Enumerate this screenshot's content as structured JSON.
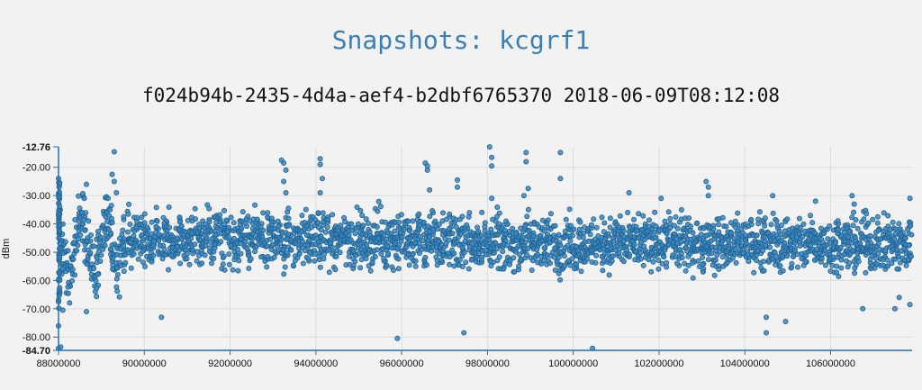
{
  "page": {
    "title": "Snapshots: kcgrf1",
    "subtitle": "f024b94b-2435-4d4a-aef4-b2dbf6765370 2018-06-09T08:12:08"
  },
  "chart_data": {
    "type": "scatter",
    "ylabel": "dBm",
    "xlabel": "",
    "xlim": [
      88000000,
      107900000
    ],
    "ylim": [
      -84.7,
      -12.76
    ],
    "x_ticks": [
      88000000,
      90000000,
      92000000,
      94000000,
      96000000,
      98000000,
      100000000,
      102000000,
      104000000,
      106000000
    ],
    "y_ticks": [
      -20,
      -30,
      -40,
      -50,
      -60,
      -70,
      -80
    ],
    "y_tick_labels": [
      "-20.00",
      "-30.00",
      "-40.00",
      "-50.00",
      "-60.00",
      "-70.00",
      "-80.00"
    ],
    "y_min_label": "-84.70",
    "y_max_label": "-12.76",
    "grid": true,
    "colors": {
      "point_fill": "#3a87c0",
      "point_stroke": "#1f5f8f",
      "axis": "#2a6fa8",
      "grid": "#dcdcdc"
    },
    "baseline": {
      "x_start": 88000000,
      "x_step": 50000,
      "values": [
        -55,
        -50,
        -46,
        -52,
        -58,
        -60,
        -56,
        -51,
        -49,
        -42,
        -40,
        -38,
        -41,
        -45,
        -50,
        -53,
        -55,
        -57,
        -54,
        -49,
        -46,
        -44,
        -40,
        -38,
        -42,
        -47,
        -52,
        -55,
        -53,
        -49,
        -47,
        -45,
        -44,
        -46,
        -48,
        -47,
        -45,
        -43,
        -44,
        -46,
        -45,
        -44,
        -46,
        -48,
        -46,
        -44,
        -45,
        -47,
        -46,
        -45,
        -44,
        -45,
        -47,
        -48,
        -46,
        -45,
        -44,
        -43,
        -45,
        -46,
        -47,
        -46,
        -45,
        -44,
        -45,
        -46,
        -48,
        -47,
        -45,
        -44,
        -43,
        -45,
        -46,
        -45,
        -44,
        -45,
        -46,
        -45,
        -44,
        -44,
        -45,
        -47,
        -49,
        -48,
        -46,
        -45,
        -44,
        -45,
        -46,
        -47,
        -46,
        -44,
        -43,
        -44,
        -45,
        -46,
        -47,
        -48,
        -46,
        -45,
        -44,
        -43,
        -44,
        -46,
        -47,
        -48,
        -46,
        -45,
        -44,
        -45,
        -46,
        -47,
        -46,
        -45,
        -44,
        -44,
        -45,
        -46,
        -45,
        -44,
        -45,
        -46,
        -47,
        -46,
        -45,
        -44,
        -45,
        -46,
        -47,
        -48,
        -47,
        -45,
        -44,
        -43,
        -44,
        -45,
        -46,
        -47,
        -46,
        -45,
        -44,
        -45,
        -46,
        -47,
        -48,
        -47,
        -46,
        -45,
        -44,
        -44,
        -45,
        -46,
        -47,
        -46,
        -45,
        -44,
        -45,
        -46,
        -47,
        -46,
        -45,
        -44,
        -45,
        -46,
        -47,
        -47,
        -46,
        -45,
        -44,
        -45,
        -46,
        -47,
        -47,
        -46,
        -45,
        -45,
        -46,
        -47,
        -48,
        -47,
        -46,
        -45,
        -44,
        -45,
        -46,
        -47,
        -48,
        -47,
        -46,
        -45,
        -44,
        -45,
        -46,
        -47,
        -48,
        -47,
        -46,
        -45,
        -46,
        -47,
        -48,
        -48,
        -47,
        -46,
        -45,
        -46,
        -47,
        -48,
        -49,
        -48,
        -47,
        -46,
        -46,
        -47,
        -48,
        -48,
        -47,
        -46,
        -45,
        -46,
        -47,
        -48,
        -47,
        -46,
        -45,
        -46,
        -47,
        -48,
        -48,
        -47,
        -46,
        -46,
        -47,
        -48,
        -49,
        -48,
        -47,
        -46,
        -46,
        -47,
        -48,
        -48,
        -47,
        -46,
        -46,
        -47,
        -48,
        -48,
        -47,
        -46,
        -46,
        -47,
        -48,
        -48,
        -47,
        -46,
        -46,
        -47,
        -48,
        -47,
        -46,
        -45,
        -46,
        -47,
        -48,
        -48,
        -47,
        -46,
        -46,
        -47,
        -48,
        -48,
        -47,
        -46,
        -46,
        -47,
        -48,
        -47,
        -46,
        -45,
        -46,
        -47,
        -48,
        -48,
        -47,
        -46,
        -46,
        -47,
        -48,
        -48,
        -47,
        -46,
        -46,
        -47,
        -48,
        -48,
        -47,
        -46,
        -46,
        -47,
        -48,
        -48,
        -47,
        -46,
        -46,
        -47,
        -48,
        -48,
        -47,
        -46,
        -46,
        -47,
        -48,
        -48,
        -47,
        -46,
        -46,
        -47,
        -48,
        -48,
        -47,
        -46,
        -46,
        -47,
        -48,
        -48,
        -47,
        -46,
        -46,
        -47,
        -48,
        -48,
        -47,
        -46,
        -46,
        -47,
        -48,
        -48,
        -47,
        -46,
        -46,
        -47,
        -48,
        -48,
        -47,
        -46,
        -46,
        -47,
        -48,
        -48,
        -47,
        -46,
        -46,
        -47,
        -48,
        -48,
        -47,
        -46,
        -46,
        -47,
        -48,
        -48,
        -47,
        -46,
        -46,
        -47,
        -48,
        -48,
        -47,
        -46,
        -46,
        -47,
        -48,
        -48,
        -47,
        -46,
        -46,
        -47,
        -48,
        -48,
        -47,
        -46,
        -46,
        -47,
        -48,
        -48,
        -47,
        -46,
        -46,
        -47,
        -48,
        -48,
        -47,
        -46,
        -46,
        -47,
        -48,
        -48,
        -47,
        -46,
        -46,
        -47,
        -48,
        -48,
        -47,
        -46,
        -46,
        -47,
        -48,
        -48,
        -47,
        -46,
        -46,
        -47,
        -48,
        -48,
        -47
      ]
    },
    "peaks": [
      {
        "x": 88000000,
        "y": -24.0
      },
      {
        "x": 88020000,
        "y": -30.0
      },
      {
        "x": 88040000,
        "y": -35.0
      },
      {
        "x": 88550000,
        "y": -36.0
      },
      {
        "x": 88600000,
        "y": -31.0
      },
      {
        "x": 88650000,
        "y": -26.0
      },
      {
        "x": 88700000,
        "y": -39.0
      },
      {
        "x": 89250000,
        "y": -22.5
      },
      {
        "x": 89300000,
        "y": -14.5
      },
      {
        "x": 89300000,
        "y": -25.0
      },
      {
        "x": 89350000,
        "y": -29.0
      },
      {
        "x": 89200000,
        "y": -35.0
      },
      {
        "x": 93200000,
        "y": -17.5
      },
      {
        "x": 93250000,
        "y": -18.5
      },
      {
        "x": 93300000,
        "y": -21.0
      },
      {
        "x": 93250000,
        "y": -25.0
      },
      {
        "x": 93300000,
        "y": -29.0
      },
      {
        "x": 94100000,
        "y": -17.0
      },
      {
        "x": 94100000,
        "y": -19.0
      },
      {
        "x": 94150000,
        "y": -24.0
      },
      {
        "x": 94100000,
        "y": -29.0
      },
      {
        "x": 96550000,
        "y": -18.5
      },
      {
        "x": 96600000,
        "y": -19.5
      },
      {
        "x": 96600000,
        "y": -21.0
      },
      {
        "x": 96650000,
        "y": -28.0
      },
      {
        "x": 97300000,
        "y": -24.5
      },
      {
        "x": 97300000,
        "y": -27.0
      },
      {
        "x": 98050000,
        "y": -12.8
      },
      {
        "x": 98100000,
        "y": -16.5
      },
      {
        "x": 98100000,
        "y": -19.5
      },
      {
        "x": 98100000,
        "y": -31.0
      },
      {
        "x": 98900000,
        "y": -14.8
      },
      {
        "x": 98900000,
        "y": -18.0
      },
      {
        "x": 98950000,
        "y": -27.5
      },
      {
        "x": 98850000,
        "y": -30.0
      },
      {
        "x": 99700000,
        "y": -14.8
      },
      {
        "x": 99700000,
        "y": -24.0
      },
      {
        "x": 101300000,
        "y": -29.0
      },
      {
        "x": 102050000,
        "y": -31.0
      },
      {
        "x": 103100000,
        "y": -25.0
      },
      {
        "x": 103150000,
        "y": -27.0
      },
      {
        "x": 103150000,
        "y": -30.0
      },
      {
        "x": 104650000,
        "y": -30.0
      },
      {
        "x": 105650000,
        "y": -32.0
      },
      {
        "x": 106500000,
        "y": -30.0
      },
      {
        "x": 106550000,
        "y": -33.0
      },
      {
        "x": 107850000,
        "y": -31.0
      }
    ],
    "lows": [
      {
        "x": 88000000,
        "y": -84.0
      },
      {
        "x": 88050000,
        "y": -83.5
      },
      {
        "x": 88000000,
        "y": -76.0
      },
      {
        "x": 88100000,
        "y": -70.5
      },
      {
        "x": 88650000,
        "y": -71.0
      },
      {
        "x": 90400000,
        "y": -73.0
      },
      {
        "x": 95900000,
        "y": -80.5
      },
      {
        "x": 97450000,
        "y": -78.5
      },
      {
        "x": 100450000,
        "y": -84.0
      },
      {
        "x": 104500000,
        "y": -73.0
      },
      {
        "x": 104950000,
        "y": -74.5
      },
      {
        "x": 104500000,
        "y": -78.5
      },
      {
        "x": 106750000,
        "y": -70.0
      },
      {
        "x": 107500000,
        "y": -70.0
      },
      {
        "x": 107850000,
        "y": -68.5
      },
      {
        "x": 107600000,
        "y": -66.0
      }
    ]
  }
}
